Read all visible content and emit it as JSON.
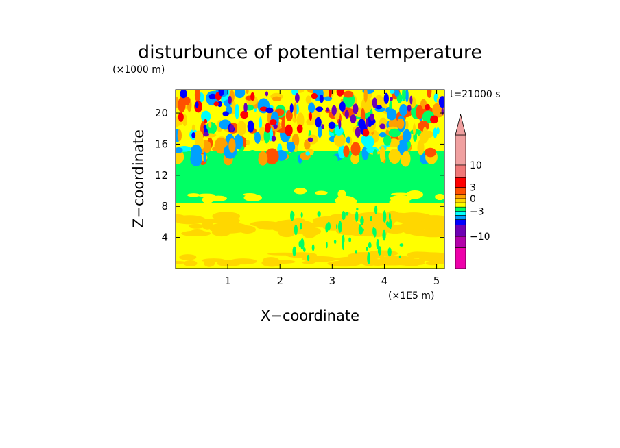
{
  "chart_data": {
    "type": "heatmap",
    "title": "disturbunce of potential temperature",
    "xlabel": "X−coordinate",
    "ylabel": "Z−coordinate",
    "x_unit": "(×1E5 m)",
    "y_unit": "(×1000 m)",
    "time_label": "t=21000 s",
    "xlim": [
      0,
      5.15
    ],
    "ylim": [
      0,
      23
    ],
    "x_ticks": [
      1,
      2,
      3,
      4,
      5
    ],
    "y_ticks": [
      4,
      8,
      12,
      16,
      20
    ],
    "x_tick_labels": [
      "1",
      "2",
      "3",
      "4",
      "5"
    ],
    "y_tick_labels": [
      "4",
      "8",
      "12",
      "16",
      "20"
    ],
    "colorbar": {
      "labels": [
        "10",
        "3",
        "0",
        "−3",
        "−10"
      ],
      "colors": [
        "#ee00aa",
        "#b400aa",
        "#6e00b4",
        "#0000ff",
        "#00a0ff",
        "#00ffff",
        "#00ff64",
        "#ffff00",
        "#ffd700",
        "#ffa000",
        "#ff5000",
        "#ff0000",
        "#f07878",
        "#f0a0a0"
      ]
    },
    "regions": [
      {
        "z_range": [
          0,
          8
        ],
        "value": "1 to 3 (yellow/orange)"
      },
      {
        "z_range": [
          8,
          14
        ],
        "value": "-0.5 to 0.5 (green)"
      },
      {
        "z_range": [
          14,
          23
        ],
        "value": "-10 to 10 (mixed wave pattern)"
      }
    ]
  }
}
